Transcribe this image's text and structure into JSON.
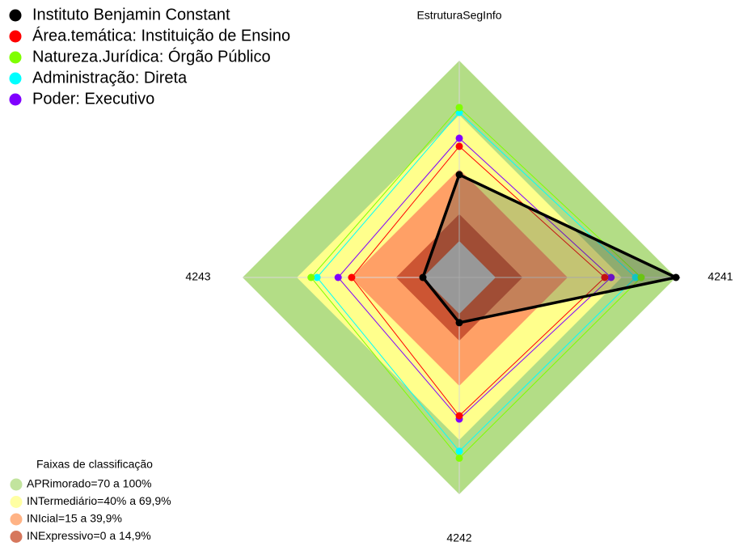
{
  "chart_data": {
    "type": "radar",
    "title": "Instituto Benjamin Constant",
    "categories": [
      "EstruturaSegInfo",
      "4241",
      "4242",
      "4243"
    ],
    "rlim": [
      0,
      100
    ],
    "series": [
      {
        "name": "Instituto Benjamin Constant",
        "color": "#000000",
        "values": [
          36.8,
          100,
          4.9,
          0
        ]
      },
      {
        "name": "Área.temática: Instituição de Ensino",
        "color": "#ff0000",
        "values": [
          52.5,
          60.5,
          56.5,
          39.5
        ]
      },
      {
        "name": "Natureza.Jurídica: Órgão Público",
        "color": "#7fff00",
        "values": [
          74,
          80.7,
          80,
          62
        ]
      },
      {
        "name": "Administração: Direta",
        "color": "#00ffff",
        "values": [
          71.3,
          77.6,
          76.2,
          58.7
        ]
      },
      {
        "name": "Poder: Executivo",
        "color": "#8000ff",
        "values": [
          57,
          64,
          58.3,
          47
        ]
      }
    ],
    "bands_title": "Faixas de classificação",
    "bands": [
      {
        "label": "APRimorado=70 a 100%",
        "min": 70,
        "max": 100,
        "color": "#b3dd86"
      },
      {
        "label": "INTermediário=40% a 69,9%",
        "min": 40,
        "max": 69.9,
        "color": "#ffff8c"
      },
      {
        "label": "INIcial=15 a 39,9%",
        "min": 15,
        "max": 39.9,
        "color": "#ffa066"
      },
      {
        "label": "INExpressivo=0 a 14,9%",
        "min": 0,
        "max": 14.9,
        "color": "#cc5533"
      }
    ]
  }
}
